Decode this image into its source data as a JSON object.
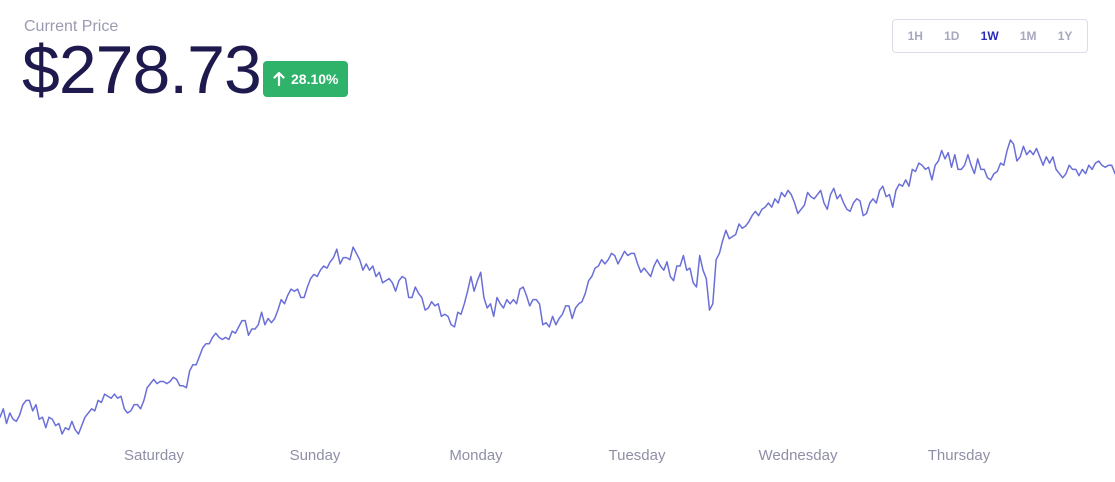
{
  "header": {
    "label": "Current Price",
    "price": "$278.73",
    "change": "28.10%",
    "change_icon": "arrow-up-icon",
    "change_color": "#2fb36a"
  },
  "range_tabs": {
    "items": [
      "1H",
      "1D",
      "1W",
      "1M",
      "1Y"
    ],
    "selected": "1W"
  },
  "chart_data": {
    "type": "line",
    "line_color": "#6a6fd8",
    "x_axis_labels": [
      "Saturday",
      "Sunday",
      "Monday",
      "Tuesday",
      "Wednesday",
      "Thursday"
    ],
    "grid": false,
    "legend": "none",
    "ylim": [
      150,
      290
    ],
    "series": [
      {
        "values": [
          158,
          162,
          155,
          160,
          157,
          156,
          159,
          164,
          166,
          166,
          161,
          164,
          157,
          158,
          153,
          158,
          157,
          154,
          155,
          150,
          153,
          152,
          156,
          152,
          150,
          154,
          158,
          160,
          162,
          161,
          166,
          165,
          169,
          168,
          167,
          169,
          167,
          168,
          162,
          160,
          161,
          164,
          164,
          162,
          166,
          172,
          174,
          176,
          174,
          175,
          175,
          174,
          175,
          177,
          176,
          173,
          173,
          172,
          180,
          183,
          183,
          187,
          191,
          193,
          193,
          196,
          198,
          196,
          195,
          196,
          195,
          199,
          198,
          201,
          204,
          204,
          197,
          200,
          200,
          202,
          208,
          202,
          205,
          203,
          205,
          209,
          214,
          212,
          216,
          219,
          218,
          219,
          215,
          215,
          220,
          224,
          226,
          225,
          228,
          230,
          229,
          232,
          234,
          238,
          231,
          234,
          234,
          233,
          239,
          236,
          233,
          228,
          231,
          228,
          230,
          225,
          227,
          222,
          223,
          224,
          222,
          218,
          223,
          225,
          224,
          215,
          215,
          220,
          217,
          215,
          209,
          210,
          213,
          211,
          212,
          206,
          207,
          206,
          202,
          201,
          208,
          207,
          212,
          218,
          225,
          218,
          223,
          227,
          215,
          210,
          212,
          206,
          215,
          212,
          210,
          214,
          212,
          214,
          212,
          219,
          220,
          216,
          211,
          214,
          214,
          212,
          202,
          203,
          201,
          206,
          202,
          205,
          207,
          211,
          211,
          205,
          210,
          212,
          213,
          217,
          223,
          225,
          229,
          230,
          233,
          231,
          233,
          236,
          235,
          231,
          234,
          237,
          235,
          236,
          236,
          231,
          227,
          229,
          227,
          225,
          230,
          233,
          230,
          228,
          232,
          225,
          223,
          230,
          230,
          235,
          228,
          229,
          222,
          220,
          235,
          228,
          224,
          209,
          212,
          233,
          236,
          242,
          247,
          243,
          244,
          245,
          250,
          248,
          249,
          251,
          254,
          256,
          254,
          257,
          258,
          260,
          258,
          262,
          260,
          265,
          263,
          266,
          264,
          260,
          255,
          257,
          259,
          265,
          263,
          262,
          264,
          266,
          260,
          257,
          264,
          267,
          262,
          264,
          260,
          257,
          256,
          260,
          262,
          261,
          254,
          255,
          260,
          262,
          260,
          266,
          268,
          263,
          264,
          258,
          266,
          269,
          268,
          271,
          268,
          276,
          275,
          279,
          278,
          276,
          277,
          271,
          278,
          280,
          285,
          281,
          284,
          277,
          283,
          276,
          276,
          278,
          283,
          278,
          274,
          281,
          276,
          276,
          272,
          271,
          274,
          275,
          279,
          278,
          285,
          290,
          288,
          280,
          282,
          287,
          283,
          285,
          283,
          286,
          282,
          278,
          282,
          279,
          282,
          276,
          274,
          272,
          274,
          278,
          276,
          276,
          273,
          276,
          274,
          278,
          276,
          279,
          280,
          278,
          277,
          278,
          278,
          274
        ]
      }
    ]
  }
}
